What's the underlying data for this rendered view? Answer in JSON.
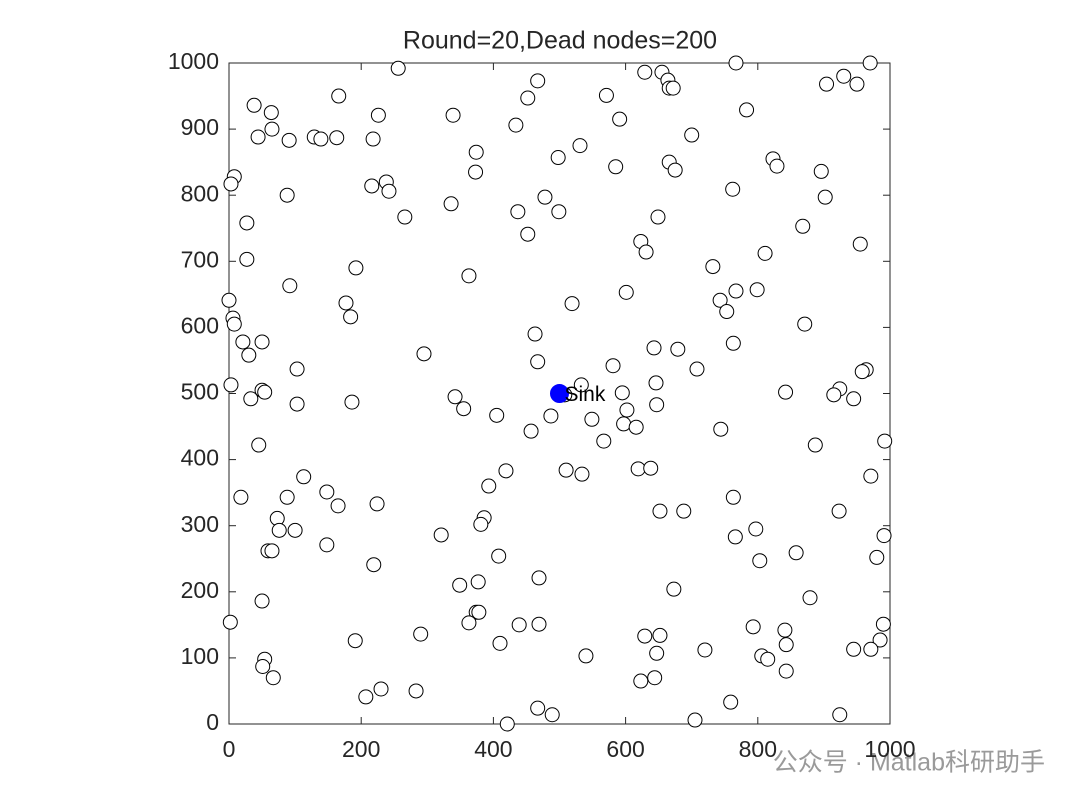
{
  "chart_data": {
    "type": "scatter",
    "title": "Round=20,Dead nodes=200",
    "x": [
      256,
      467,
      629,
      655,
      664,
      666,
      672,
      767,
      970,
      930,
      904,
      950,
      38,
      64,
      166,
      226,
      452,
      571,
      591,
      339,
      434,
      65,
      44,
      91,
      129,
      139,
      163,
      218,
      783,
      700,
      531,
      374,
      498,
      585,
      666,
      675,
      896,
      823,
      829,
      8,
      3,
      216,
      238,
      242,
      88,
      373,
      762,
      902,
      478,
      336,
      499,
      437,
      266,
      649,
      27,
      452,
      868,
      623,
      631,
      955,
      811,
      27,
      192,
      732,
      363,
      92,
      799,
      767,
      601,
      743,
      519,
      177,
      0,
      6,
      753,
      184,
      8,
      871,
      21,
      50,
      763,
      463,
      643,
      679,
      30,
      295,
      467,
      581,
      708,
      964,
      958,
      103,
      3,
      533,
      646,
      924,
      915,
      945,
      842,
      50,
      54,
      33,
      342,
      508,
      595,
      103,
      186,
      355,
      602,
      647,
      405,
      487,
      549,
      597,
      616,
      457,
      744,
      567,
      992,
      887,
      45,
      419,
      510,
      619,
      638,
      113,
      534,
      971,
      18,
      88,
      148,
      393,
      763,
      165,
      224,
      923,
      73,
      386,
      652,
      688,
      381,
      76,
      100,
      797,
      321,
      991,
      766,
      148,
      59,
      65,
      858,
      408,
      980,
      803,
      219,
      469,
      349,
      377,
      673,
      879,
      50,
      374,
      378,
      363,
      2,
      469,
      439,
      793,
      990,
      841,
      629,
      652,
      290,
      191,
      985,
      410,
      843,
      720,
      945,
      971,
      647,
      540,
      806,
      815,
      54,
      51,
      843,
      67,
      623,
      644,
      230,
      283,
      207,
      759,
      467,
      489,
      924,
      421,
      705
    ],
    "values": [
      992,
      973,
      986,
      986,
      974,
      962,
      962,
      1000,
      1000,
      980,
      968,
      968,
      936,
      925,
      950,
      921,
      947,
      951,
      915,
      921,
      906,
      900,
      888,
      883,
      888,
      885,
      887,
      885,
      929,
      891,
      875,
      865,
      857,
      843,
      850,
      838,
      836,
      855,
      844,
      828,
      817,
      814,
      820,
      806,
      800,
      835,
      809,
      797,
      797,
      787,
      775,
      775,
      767,
      767,
      758,
      741,
      753,
      730,
      714,
      726,
      712,
      703,
      690,
      692,
      678,
      663,
      657,
      655,
      653,
      641,
      636,
      637,
      641,
      614,
      624,
      616,
      605,
      605,
      578,
      578,
      576,
      590,
      569,
      567,
      558,
      560,
      548,
      542,
      537,
      536,
      533,
      537,
      513,
      513,
      516,
      507,
      498,
      492,
      502,
      505,
      502,
      492,
      495,
      498,
      501,
      484,
      487,
      477,
      475,
      483,
      467,
      466,
      461,
      454,
      449,
      443,
      446,
      428,
      428,
      422,
      422,
      383,
      384,
      386,
      387,
      374,
      378,
      375,
      343,
      343,
      351,
      360,
      343,
      330,
      333,
      322,
      311,
      312,
      322,
      322,
      302,
      293,
      293,
      295,
      286,
      285,
      283,
      271,
      262,
      262,
      259,
      254,
      252,
      247,
      241,
      221,
      210,
      215,
      204,
      191,
      186,
      169,
      169,
      153,
      154,
      151,
      150,
      147,
      151,
      142,
      133,
      134,
      136,
      126,
      127,
      122,
      120,
      112,
      113,
      113,
      107,
      103,
      103,
      98,
      98,
      87,
      80,
      70,
      65,
      70,
      53,
      50,
      41,
      33,
      24,
      14,
      14,
      0,
      6
    ],
    "color": "#ffffff",
    "edgecolor": "#000000",
    "annotation": {
      "text": "Sink",
      "x": 500,
      "y": 500,
      "color": "#0000ff"
    },
    "xlim": [
      0,
      1000
    ],
    "ylim": [
      0,
      1000
    ],
    "xticks": [
      0,
      200,
      400,
      600,
      800,
      1000
    ],
    "yticks": [
      0,
      100,
      200,
      300,
      400,
      500,
      600,
      700,
      800,
      900,
      1000
    ],
    "grid": false
  },
  "watermark": "公众号 · Matlab科研助手"
}
